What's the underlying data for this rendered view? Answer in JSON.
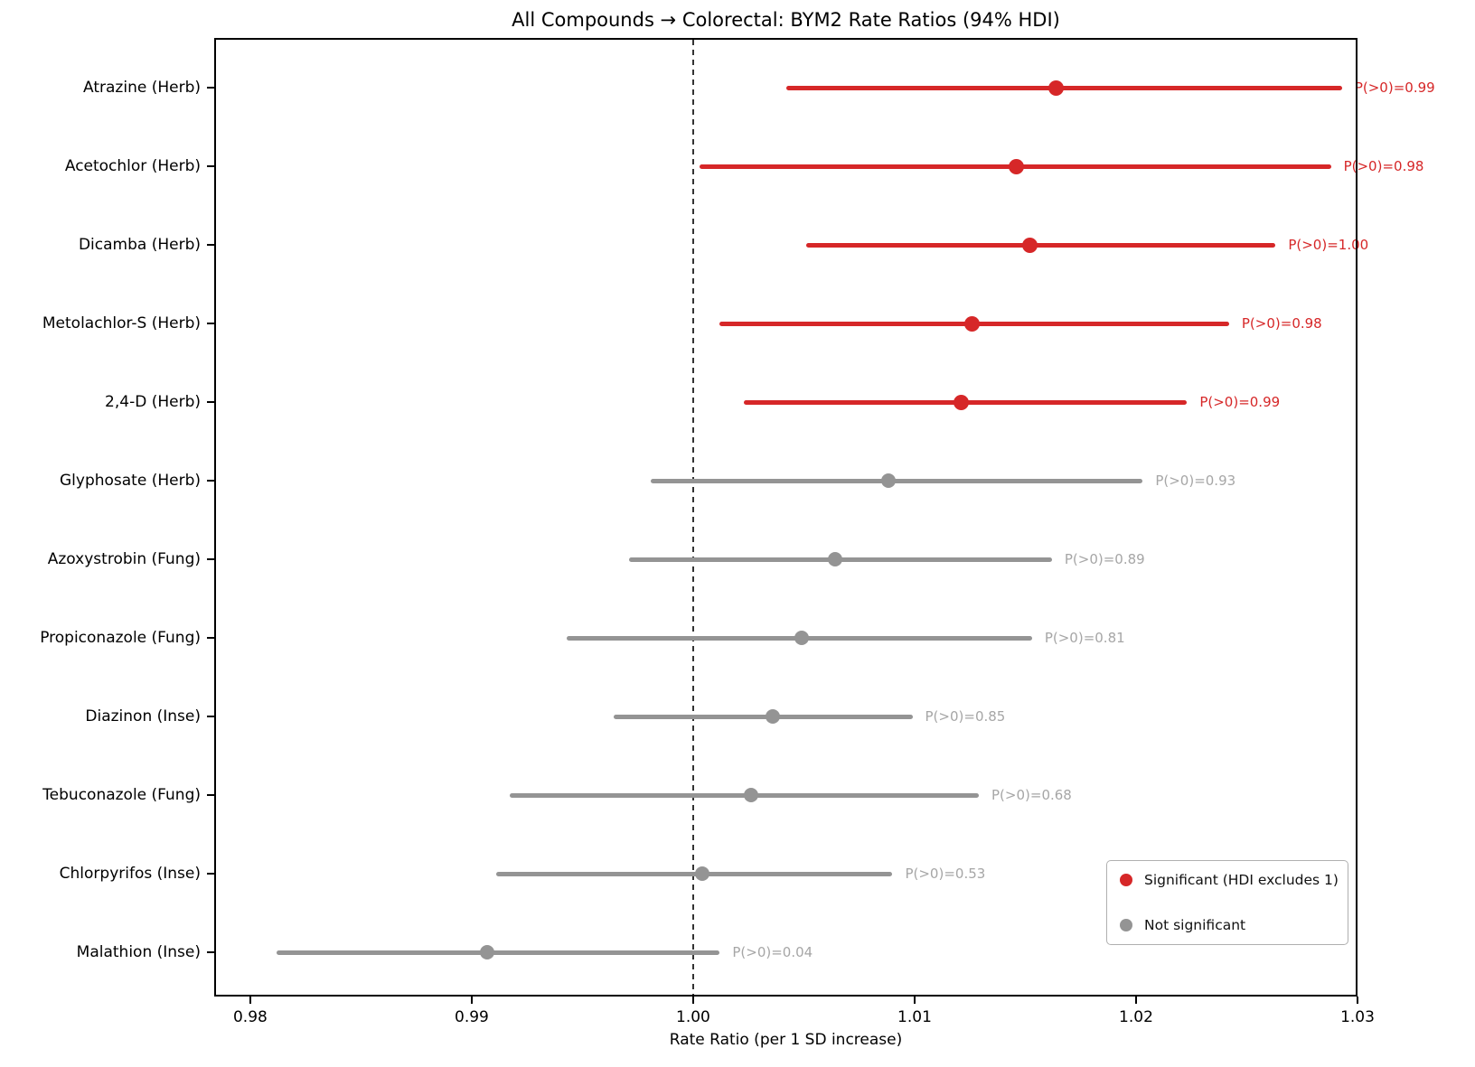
{
  "title": "All Compounds → Colorectal: BYM2 Rate Ratios (94% HDI)",
  "xlabel": "Rate Ratio (per 1 SD increase)",
  "colors": {
    "significant": "#d62728",
    "not_significant": "#949494",
    "annotation_gray": "#a6a6a6",
    "reference_line": "#333333",
    "axis": "#000000"
  },
  "legend": {
    "items": [
      {
        "label": "Significant (HDI excludes 1)",
        "color_key": "significant"
      },
      {
        "label": "Not significant",
        "color_key": "not_significant"
      }
    ]
  },
  "chart_data": {
    "type": "scatter",
    "subtype": "forest-plot",
    "title": "All Compounds → Colorectal: BYM2 Rate Ratios (94% HDI)",
    "xlabel": "Rate Ratio (per 1 SD increase)",
    "xlim": [
      0.97837,
      1.03
    ],
    "x_tick_values": [
      0.98,
      0.99,
      1.0,
      1.01,
      1.02,
      1.03
    ],
    "x_tick_labels": [
      "0.98",
      "0.99",
      "1.00",
      "1.01",
      "1.02",
      "1.03"
    ],
    "reference_line_x": 1.0,
    "grid": false,
    "legend_position": "lower right",
    "rows": [
      {
        "label": "Atrazine (Herb)",
        "mean": 1.0164,
        "hdi_low": 1.0042,
        "hdi_high": 1.0293,
        "p_annotation": "P(>0)=0.99",
        "significant": true
      },
      {
        "label": "Acetochlor (Herb)",
        "mean": 1.0146,
        "hdi_low": 1.0003,
        "hdi_high": 1.0288,
        "p_annotation": "P(>0)=0.98",
        "significant": true
      },
      {
        "label": "Dicamba (Herb)",
        "mean": 1.0152,
        "hdi_low": 1.0051,
        "hdi_high": 1.0263,
        "p_annotation": "P(>0)=1.00",
        "significant": true
      },
      {
        "label": "Metolachlor-S (Herb)",
        "mean": 1.0126,
        "hdi_low": 1.0012,
        "hdi_high": 1.0242,
        "p_annotation": "P(>0)=0.98",
        "significant": true
      },
      {
        "label": "2,4-D (Herb)",
        "mean": 1.0121,
        "hdi_low": 1.0023,
        "hdi_high": 1.0223,
        "p_annotation": "P(>0)=0.99",
        "significant": true
      },
      {
        "label": "Glyphosate (Herb)",
        "mean": 1.0088,
        "hdi_low": 0.9981,
        "hdi_high": 1.0203,
        "p_annotation": "P(>0)=0.93",
        "significant": false
      },
      {
        "label": "Azoxystrobin (Fung)",
        "mean": 1.0064,
        "hdi_low": 0.9971,
        "hdi_high": 1.0162,
        "p_annotation": "P(>0)=0.89",
        "significant": false
      },
      {
        "label": "Propiconazole (Fung)",
        "mean": 1.0049,
        "hdi_low": 0.9943,
        "hdi_high": 1.0153,
        "p_annotation": "P(>0)=0.81",
        "significant": false
      },
      {
        "label": "Diazinon (Inse)",
        "mean": 1.0036,
        "hdi_low": 0.9964,
        "hdi_high": 1.0099,
        "p_annotation": "P(>0)=0.85",
        "significant": false
      },
      {
        "label": "Tebuconazole (Fung)",
        "mean": 1.0026,
        "hdi_low": 0.9917,
        "hdi_high": 1.0129,
        "p_annotation": "P(>0)=0.68",
        "significant": false
      },
      {
        "label": "Chlorpyrifos (Inse)",
        "mean": 1.0004,
        "hdi_low": 0.9911,
        "hdi_high": 1.009,
        "p_annotation": "P(>0)=0.53",
        "significant": false
      },
      {
        "label": "Malathion (Inse)",
        "mean": 0.9907,
        "hdi_low": 0.9812,
        "hdi_high": 1.0012,
        "p_annotation": "P(>0)=0.04",
        "significant": false
      }
    ]
  }
}
